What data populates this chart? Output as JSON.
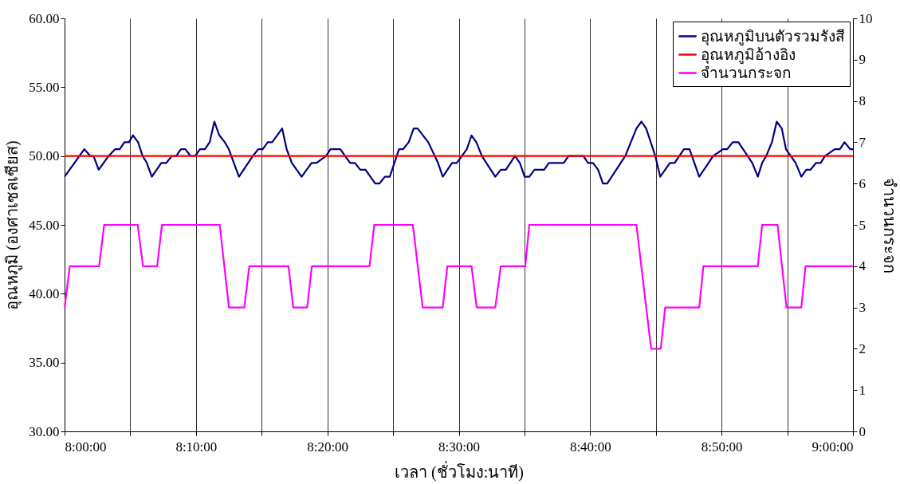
{
  "chart_data": {
    "type": "line",
    "xlabel": "เวลา (ชั่วโมง:นาที)",
    "ylabel": "อุณหภูมิ (องศาเซลเซียส)",
    "y2label": "จำนวนกระจก",
    "xlim": [
      8,
      9
    ],
    "xticks": [
      {
        "value": 8,
        "label": "8:00:00"
      },
      {
        "value": 8.0833,
        "label": null
      },
      {
        "value": 8.1667,
        "label": "8:10:00"
      },
      {
        "value": 8.25,
        "label": null
      },
      {
        "value": 8.3333,
        "label": "8:20:00"
      },
      {
        "value": 8.4167,
        "label": null
      },
      {
        "value": 8.5,
        "label": "8:30:00"
      },
      {
        "value": 8.5833,
        "label": null
      },
      {
        "value": 8.6667,
        "label": "8:40:00"
      },
      {
        "value": 8.75,
        "label": null
      },
      {
        "value": 8.8333,
        "label": "8:50:00"
      },
      {
        "value": 8.9167,
        "label": null
      },
      {
        "value": 9,
        "label": "9:00:00"
      }
    ],
    "ylim": [
      30,
      60
    ],
    "yticks": [
      {
        "value": 30,
        "label": "30.00"
      },
      {
        "value": 35,
        "label": "35.00"
      },
      {
        "value": 40,
        "label": "40.00"
      },
      {
        "value": 45,
        "label": "45.00"
      },
      {
        "value": 50,
        "label": "50.00"
      },
      {
        "value": 55,
        "label": "55.00"
      },
      {
        "value": 60,
        "label": "60.00"
      }
    ],
    "y2lim": [
      0,
      10
    ],
    "y2ticks": [
      0,
      1,
      2,
      3,
      4,
      5,
      6,
      7,
      8,
      9,
      10
    ],
    "grid": "x",
    "legend": "top right",
    "marker": "none",
    "line_style": "solid",
    "series": [
      {
        "name": "อุณหภูมิบนตัวรวมรังสี",
        "color": "#000080",
        "x": [
          8.0,
          8.025,
          8.0327,
          8.0367,
          8.0433,
          8.0558,
          8.0642,
          8.07,
          8.0758,
          8.0817,
          8.0867,
          8.0933,
          8.099,
          8.1043,
          8.1107,
          8.1227,
          8.129,
          8.1362,
          8.1417,
          8.1475,
          8.1533,
          8.1597,
          8.1657,
          8.1717,
          8.178,
          8.184,
          8.19,
          8.1963,
          8.2033,
          8.2083,
          8.2212,
          8.2388,
          8.2458,
          8.2513,
          8.2577,
          8.2633,
          8.276,
          8.2817,
          8.2883,
          8.3007,
          8.3133,
          8.3195,
          8.3317,
          8.3373,
          8.3497,
          8.3622,
          8.3683,
          8.375,
          8.3817,
          8.394,
          8.3993,
          8.4063,
          8.4125,
          8.4242,
          8.4295,
          8.4365,
          8.4428,
          8.4478,
          8.4613,
          8.4737,
          8.4797,
          8.4915,
          8.4975,
          8.5102,
          8.5162,
          8.5223,
          8.5293,
          8.5463,
          8.5533,
          8.5598,
          8.5712,
          8.5775,
          8.5835,
          8.5895,
          8.596,
          8.6083,
          8.6143,
          8.6332,
          8.6392,
          8.658,
          8.664,
          8.6703,
          8.6767,
          8.6828,
          8.6883,
          8.7112,
          8.7253,
          8.7317,
          8.7377,
          8.7493,
          8.7555,
          8.7678,
          8.7738,
          8.7855,
          8.7927,
          8.805,
          8.8227,
          8.835,
          8.8405,
          8.8475,
          8.8547,
          8.8723,
          8.8793,
          8.8848,
          8.89,
          8.8972,
          8.9033,
          8.9097,
          8.915,
          8.9273,
          8.9345,
          8.9408,
          8.946,
          8.9532,
          8.9592,
          8.9645,
          8.977,
          8.9833,
          8.9893,
          8.9965,
          9.0
        ],
        "values": [
          48.5,
          50.5,
          50,
          50,
          49,
          50,
          50.5,
          50.5,
          51,
          51,
          51.5,
          51,
          50,
          49.5,
          48.5,
          49.5,
          49.5,
          50,
          50,
          50.5,
          50.5,
          50,
          50,
          50.5,
          50.5,
          51,
          52.5,
          51.5,
          51,
          50.5,
          48.5,
          50,
          50.5,
          50.5,
          51,
          51,
          52,
          50.5,
          49.5,
          48.5,
          49.5,
          49.5,
          50,
          50.5,
          50.5,
          49.5,
          49.5,
          49,
          49,
          48,
          48,
          48.5,
          48.5,
          50.5,
          50.5,
          51,
          52,
          52,
          51,
          49.5,
          48.5,
          49.5,
          49.5,
          50.5,
          51.5,
          51,
          50,
          48.5,
          49,
          49,
          50,
          49.5,
          48.5,
          48.5,
          49,
          49,
          49.5,
          49.5,
          50,
          50,
          49.5,
          49.5,
          49,
          48,
          48,
          50,
          52,
          52.5,
          52,
          50,
          48.5,
          49.5,
          49.5,
          50.5,
          50.5,
          48.5,
          50,
          50.5,
          50.5,
          51,
          51,
          49.5,
          48.5,
          49.5,
          50,
          51,
          52.5,
          52,
          50.5,
          49.5,
          48.5,
          49,
          49,
          49.5,
          49.5,
          50,
          50.5,
          50.5,
          51,
          50.5,
          50.5
        ]
      },
      {
        "name": "อุณหภูมิอ้างอิง",
        "color": "#ff0000",
        "x": [
          8,
          9
        ],
        "values": [
          50,
          50
        ]
      },
      {
        "name": "จำนวนกระจก",
        "color": "#ff00ff",
        "axis": "y2",
        "x": [
          8.0,
          8.0067,
          8.0438,
          8.0502,
          8.0927,
          8.0995,
          8.1175,
          8.1235,
          8.1968,
          8.2085,
          8.228,
          8.2343,
          8.284,
          8.29,
          8.3077,
          8.3137,
          8.3868,
          8.3928,
          8.4418,
          8.4542,
          8.4797,
          8.4855,
          8.5162,
          8.5227,
          8.5463,
          8.5533,
          8.5843,
          8.5895,
          8.7253,
          8.744,
          8.7562,
          8.7618,
          8.805,
          8.8103,
          8.8793,
          8.8848,
          8.9043,
          8.9157,
          8.9345,
          8.9398,
          9.0
        ],
        "values": [
          3,
          4,
          4,
          5,
          5,
          4,
          4,
          5,
          5,
          3,
          3,
          4,
          4,
          3,
          3,
          4,
          4,
          5,
          5,
          3,
          3,
          4,
          4,
          3,
          3,
          4,
          4,
          5,
          5,
          2,
          2,
          3,
          3,
          4,
          4,
          5,
          5,
          3,
          3,
          4,
          4
        ]
      }
    ]
  }
}
